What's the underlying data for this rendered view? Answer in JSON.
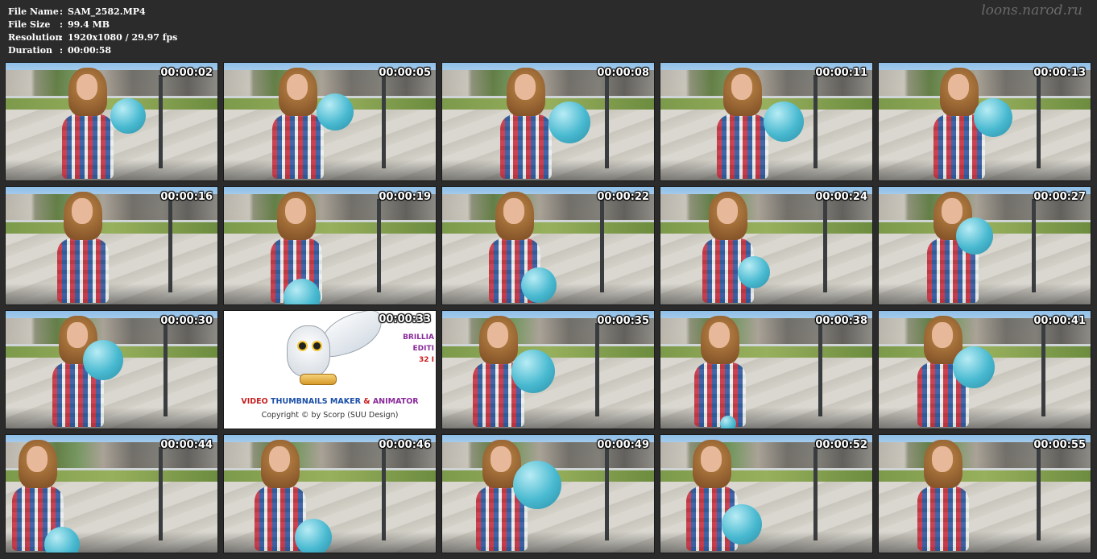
{
  "header": {
    "file_name_label": "File Name",
    "file_name": "SAM_2582.MP4",
    "file_size_label": "File Size",
    "file_size": "99.4 MB",
    "resolution_label": "Resolution",
    "resolution": "1920x1080 / 29.97 fps",
    "duration_label": "Duration",
    "duration": "00:00:58",
    "separator": ":"
  },
  "watermark": "loons.narod.ru",
  "thumbnails": [
    {
      "time": "00:00:02"
    },
    {
      "time": "00:00:05"
    },
    {
      "time": "00:00:08"
    },
    {
      "time": "00:00:11"
    },
    {
      "time": "00:00:13"
    },
    {
      "time": "00:00:16"
    },
    {
      "time": "00:00:19"
    },
    {
      "time": "00:00:22"
    },
    {
      "time": "00:00:24"
    },
    {
      "time": "00:00:27"
    },
    {
      "time": "00:00:30"
    },
    {
      "time": "00:00:33"
    },
    {
      "time": "00:00:35"
    },
    {
      "time": "00:00:38"
    },
    {
      "time": "00:00:41"
    },
    {
      "time": "00:00:44"
    },
    {
      "time": "00:00:46"
    },
    {
      "time": "00:00:49"
    },
    {
      "time": "00:00:52"
    },
    {
      "time": "00:00:55"
    }
  ],
  "promo": {
    "side_line1": "BRILLIA",
    "side_line2": "EDITI",
    "side_line3": "32 I",
    "title_part1": "VIDEO ",
    "title_part2": "THUMBNAILS MAKER",
    "title_part3": " & ",
    "title_part4": "ANIMATOR",
    "copyright": "Copyright © by Scorp (SUU Design)"
  }
}
